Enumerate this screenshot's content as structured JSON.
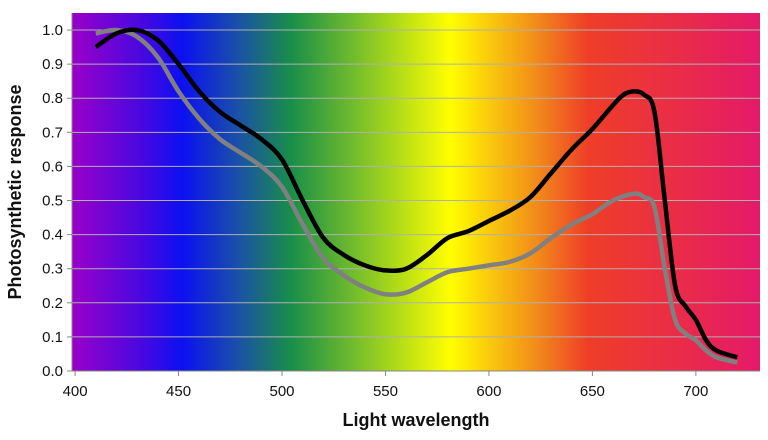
{
  "chart_data": {
    "type": "line",
    "title": "",
    "xlabel": "Light wavelength",
    "ylabel": "Photosynthetic response",
    "xlim": [
      398.5,
      731
    ],
    "ylim": [
      0,
      1.05
    ],
    "xticks": [
      400,
      450,
      500,
      550,
      600,
      650,
      700
    ],
    "yticks": [
      0.0,
      0.1,
      0.2,
      0.3,
      0.4,
      0.5,
      0.6,
      0.7,
      0.8,
      0.9,
      1.0
    ],
    "ytick_labels": [
      "0.0",
      "0.1",
      "0.2",
      "0.3",
      "0.4",
      "0.5",
      "0.6",
      "0.7",
      "0.8",
      "0.9",
      "1.0"
    ],
    "grid": "horizontal",
    "background": "visible light spectrum gradient",
    "series": [
      {
        "name": "black curve",
        "color": "#000000",
        "x": [
          410,
          420,
          430,
          440,
          450,
          460,
          470,
          480,
          490,
          500,
          510,
          520,
          530,
          540,
          550,
          560,
          570,
          580,
          590,
          600,
          610,
          620,
          630,
          640,
          650,
          660,
          665,
          670,
          675,
          680,
          685,
          690,
          695,
          700,
          705,
          710,
          720
        ],
        "y": [
          0.95,
          0.99,
          1.0,
          0.97,
          0.9,
          0.82,
          0.76,
          0.72,
          0.68,
          0.62,
          0.5,
          0.39,
          0.34,
          0.31,
          0.295,
          0.3,
          0.34,
          0.39,
          0.41,
          0.44,
          0.47,
          0.51,
          0.58,
          0.65,
          0.71,
          0.78,
          0.81,
          0.82,
          0.81,
          0.76,
          0.5,
          0.25,
          0.19,
          0.15,
          0.09,
          0.06,
          0.04
        ]
      },
      {
        "name": "gray curve",
        "color": "#808080",
        "x": [
          410,
          420,
          430,
          440,
          450,
          460,
          470,
          480,
          490,
          500,
          510,
          520,
          530,
          540,
          550,
          560,
          570,
          580,
          590,
          600,
          610,
          620,
          630,
          640,
          650,
          660,
          670,
          675,
          680,
          685,
          690,
          695,
          700,
          705,
          710,
          720
        ],
        "y": [
          0.99,
          1.0,
          0.98,
          0.92,
          0.82,
          0.74,
          0.68,
          0.64,
          0.6,
          0.54,
          0.43,
          0.33,
          0.28,
          0.245,
          0.225,
          0.23,
          0.26,
          0.29,
          0.3,
          0.31,
          0.32,
          0.345,
          0.39,
          0.43,
          0.46,
          0.5,
          0.52,
          0.51,
          0.48,
          0.3,
          0.15,
          0.11,
          0.09,
          0.06,
          0.04,
          0.025
        ]
      }
    ]
  }
}
